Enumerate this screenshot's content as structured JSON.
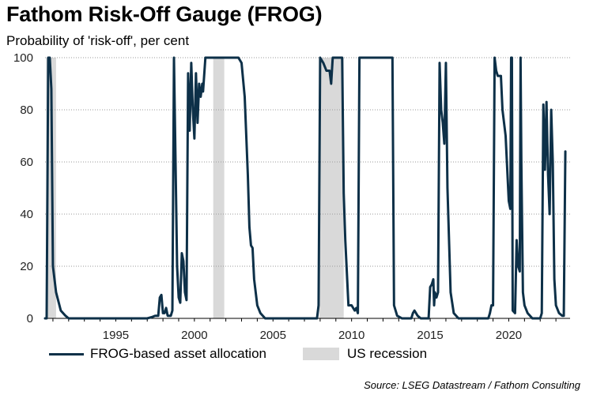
{
  "chart_data": {
    "type": "line",
    "title": "Fathom Risk-Off Gauge (FROG)",
    "subtitle": "Probability of 'risk-off', per cent",
    "source": "Source: LSEG Datastream / Fathom Consulting",
    "xlim": [
      1990.5,
      2023.9
    ],
    "ylim": [
      0,
      100
    ],
    "x_ticks": [
      1995,
      2000,
      2005,
      2010,
      2015,
      2020
    ],
    "y_ticks": [
      0,
      20,
      40,
      60,
      80,
      100
    ],
    "grid": "horizontal-dotted",
    "legend_position": "bottom",
    "colors": {
      "line": "#0d3048",
      "recession": "#d9d9d9",
      "grid": "#9a9a9a"
    },
    "series": [
      {
        "name": "FROG-based asset allocation",
        "type": "line",
        "points": [
          [
            1990.5,
            0
          ],
          [
            1990.6,
            0
          ],
          [
            1990.7,
            100
          ],
          [
            1990.8,
            100
          ],
          [
            1990.9,
            88
          ],
          [
            1991.0,
            20
          ],
          [
            1991.2,
            10
          ],
          [
            1991.5,
            3
          ],
          [
            1991.8,
            1
          ],
          [
            1992.0,
            0
          ],
          [
            1997.0,
            0
          ],
          [
            1997.3,
            0.5
          ],
          [
            1997.5,
            1
          ],
          [
            1997.7,
            1
          ],
          [
            1997.8,
            8
          ],
          [
            1997.9,
            9
          ],
          [
            1998.0,
            2
          ],
          [
            1998.1,
            2
          ],
          [
            1998.2,
            4
          ],
          [
            1998.3,
            1
          ],
          [
            1998.5,
            1
          ],
          [
            1998.6,
            3
          ],
          [
            1998.7,
            100
          ],
          [
            1998.8,
            60
          ],
          [
            1998.9,
            20
          ],
          [
            1999.0,
            8
          ],
          [
            1999.1,
            6
          ],
          [
            1999.2,
            25
          ],
          [
            1999.3,
            22
          ],
          [
            1999.4,
            10
          ],
          [
            1999.5,
            7
          ],
          [
            1999.6,
            94
          ],
          [
            1999.7,
            72
          ],
          [
            1999.8,
            98
          ],
          [
            1999.9,
            80
          ],
          [
            2000.0,
            69
          ],
          [
            2000.1,
            94
          ],
          [
            2000.2,
            75
          ],
          [
            2000.3,
            90
          ],
          [
            2000.4,
            85
          ],
          [
            2000.5,
            90
          ],
          [
            2000.55,
            87
          ],
          [
            2000.7,
            100
          ],
          [
            2001.0,
            100
          ],
          [
            2002.0,
            100
          ],
          [
            2002.8,
            100
          ],
          [
            2003.0,
            98
          ],
          [
            2003.2,
            85
          ],
          [
            2003.4,
            55
          ],
          [
            2003.5,
            35
          ],
          [
            2003.6,
            28
          ],
          [
            2003.7,
            27
          ],
          [
            2003.8,
            15
          ],
          [
            2003.9,
            10
          ],
          [
            2004.0,
            5
          ],
          [
            2004.2,
            2
          ],
          [
            2004.5,
            0
          ],
          [
            2007.8,
            0
          ],
          [
            2007.9,
            5
          ],
          [
            2008.0,
            100
          ],
          [
            2008.2,
            98
          ],
          [
            2008.4,
            95
          ],
          [
            2008.6,
            95
          ],
          [
            2008.7,
            90
          ],
          [
            2008.8,
            100
          ],
          [
            2009.2,
            100
          ],
          [
            2009.4,
            100
          ],
          [
            2009.5,
            48
          ],
          [
            2009.6,
            30
          ],
          [
            2009.8,
            5
          ],
          [
            2010.0,
            5
          ],
          [
            2010.2,
            3
          ],
          [
            2010.3,
            4
          ],
          [
            2010.4,
            2
          ],
          [
            2010.5,
            100
          ],
          [
            2011.0,
            100
          ],
          [
            2012.0,
            100
          ],
          [
            2012.6,
            100
          ],
          [
            2012.7,
            5
          ],
          [
            2012.9,
            1
          ],
          [
            2013.2,
            0
          ],
          [
            2013.8,
            0
          ],
          [
            2013.9,
            2
          ],
          [
            2014.0,
            3
          ],
          [
            2014.2,
            1
          ],
          [
            2014.4,
            0
          ],
          [
            2014.9,
            0
          ],
          [
            2015.0,
            12
          ],
          [
            2015.1,
            13
          ],
          [
            2015.2,
            15
          ],
          [
            2015.25,
            5
          ],
          [
            2015.3,
            10
          ],
          [
            2015.4,
            8
          ],
          [
            2015.5,
            10
          ],
          [
            2015.6,
            98
          ],
          [
            2015.7,
            80
          ],
          [
            2015.8,
            75
          ],
          [
            2015.9,
            67
          ],
          [
            2016.0,
            98
          ],
          [
            2016.1,
            50
          ],
          [
            2016.3,
            10
          ],
          [
            2016.5,
            2
          ],
          [
            2016.8,
            0
          ],
          [
            2018.7,
            0
          ],
          [
            2018.8,
            2
          ],
          [
            2018.9,
            5
          ],
          [
            2019.0,
            5
          ],
          [
            2019.1,
            100
          ],
          [
            2019.2,
            95
          ],
          [
            2019.3,
            93
          ],
          [
            2019.5,
            93
          ],
          [
            2019.6,
            80
          ],
          [
            2019.8,
            70
          ],
          [
            2020.0,
            45
          ],
          [
            2020.1,
            42
          ],
          [
            2020.15,
            100
          ],
          [
            2020.2,
            100
          ],
          [
            2020.25,
            3
          ],
          [
            2020.4,
            2
          ],
          [
            2020.5,
            30
          ],
          [
            2020.6,
            20
          ],
          [
            2020.7,
            18
          ],
          [
            2020.75,
            100
          ],
          [
            2020.8,
            60
          ],
          [
            2020.9,
            10
          ],
          [
            2021.0,
            5
          ],
          [
            2021.2,
            2
          ],
          [
            2021.5,
            0
          ],
          [
            2022.0,
            0
          ],
          [
            2022.1,
            2
          ],
          [
            2022.2,
            82
          ],
          [
            2022.3,
            57
          ],
          [
            2022.4,
            83
          ],
          [
            2022.5,
            55
          ],
          [
            2022.6,
            40
          ],
          [
            2022.7,
            80
          ],
          [
            2022.8,
            60
          ],
          [
            2022.9,
            15
          ],
          [
            2023.0,
            5
          ],
          [
            2023.2,
            2
          ],
          [
            2023.4,
            1
          ],
          [
            2023.5,
            1
          ],
          [
            2023.6,
            64
          ]
        ]
      },
      {
        "name": "US recession",
        "type": "shaded-periods",
        "periods": [
          [
            1990.58,
            1991.2
          ],
          [
            2001.2,
            2001.9
          ],
          [
            2007.95,
            2009.5
          ]
        ]
      }
    ]
  }
}
